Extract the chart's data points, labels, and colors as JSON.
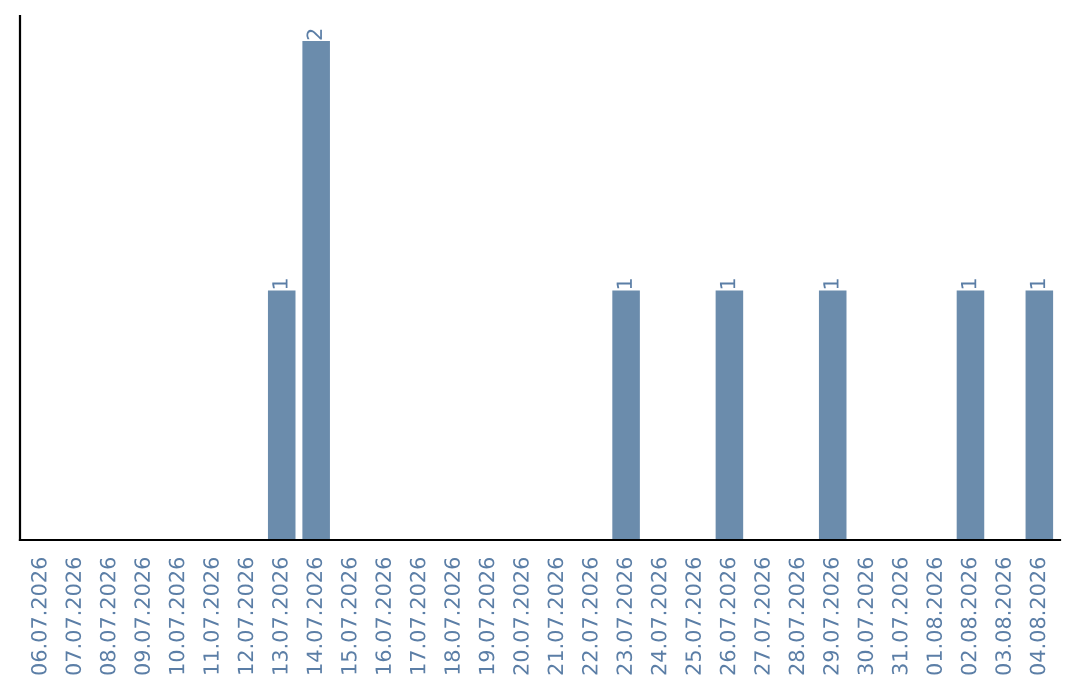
{
  "chart_data": {
    "type": "bar",
    "categories": [
      "06.07.2026",
      "07.07.2026",
      "08.07.2026",
      "09.07.2026",
      "10.07.2026",
      "11.07.2026",
      "12.07.2026",
      "13.07.2026",
      "14.07.2026",
      "15.07.2026",
      "16.07.2026",
      "17.07.2026",
      "18.07.2026",
      "19.07.2026",
      "20.07.2026",
      "21.07.2026",
      "22.07.2026",
      "23.07.2026",
      "24.07.2026",
      "25.07.2026",
      "26.07.2026",
      "27.07.2026",
      "28.07.2026",
      "29.07.2026",
      "30.07.2026",
      "31.07.2026",
      "01.08.2026",
      "02.08.2026",
      "03.08.2026",
      "04.08.2026"
    ],
    "values": [
      0,
      0,
      0,
      0,
      0,
      0,
      0,
      1,
      2,
      0,
      0,
      0,
      0,
      0,
      0,
      0,
      0,
      1,
      0,
      0,
      1,
      0,
      0,
      1,
      0,
      0,
      0,
      1,
      0,
      1
    ],
    "value_labels": [
      null,
      null,
      null,
      null,
      null,
      null,
      null,
      "1",
      "2",
      null,
      null,
      null,
      null,
      null,
      null,
      null,
      null,
      "1",
      null,
      null,
      "1",
      null,
      null,
      "1",
      null,
      null,
      null,
      "1",
      null,
      "1"
    ],
    "color": "#6b8cac",
    "grid": false,
    "legend": false
  }
}
